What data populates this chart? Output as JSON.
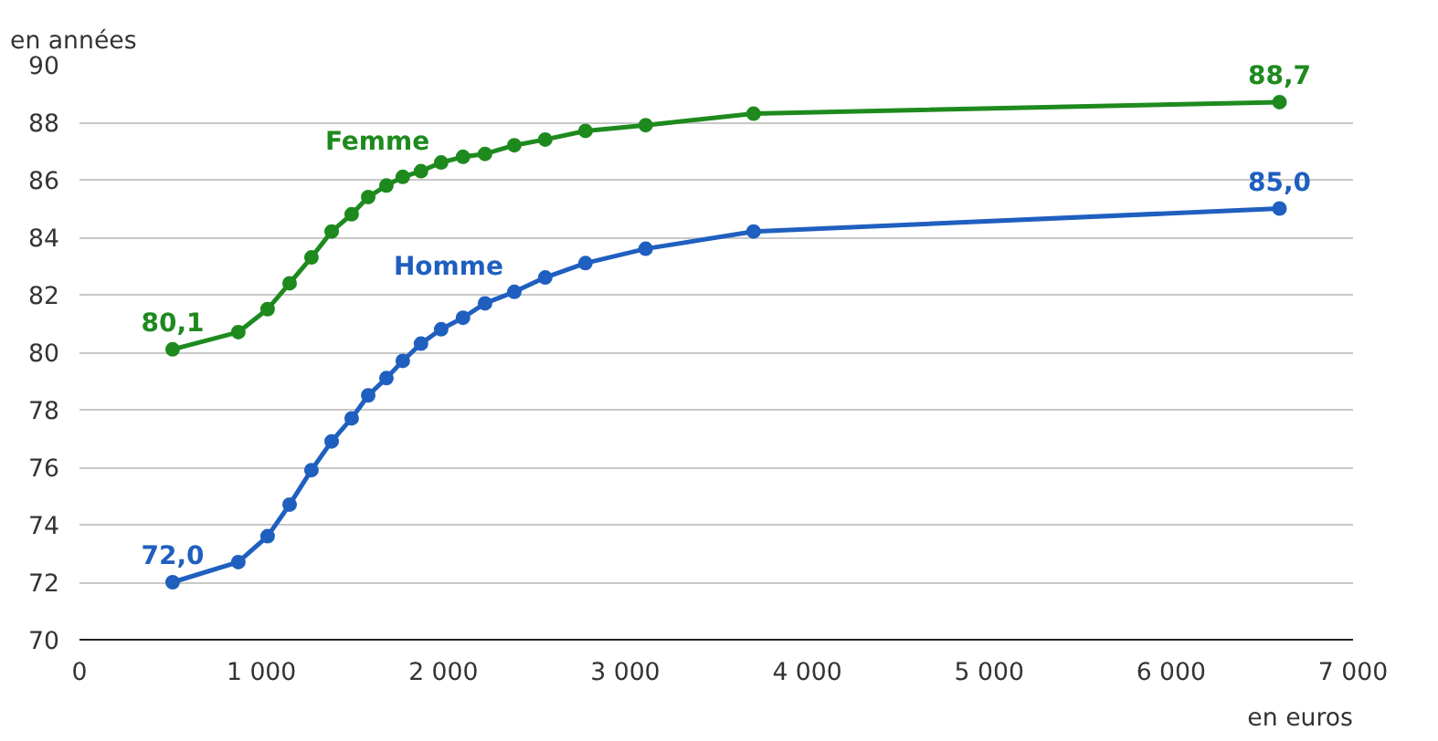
{
  "chart_data": {
    "type": "line",
    "xlabel": "en euros",
    "ylabel": "en années",
    "xlim": [
      0,
      7000
    ],
    "ylim": [
      70,
      90
    ],
    "xticks": [
      0,
      {
        "value": 1000,
        "label": "1 000"
      },
      {
        "value": 2000,
        "label": "2 000"
      },
      {
        "value": 3000,
        "label": "3 000"
      },
      {
        "value": 4000,
        "label": "4 000"
      },
      {
        "value": 5000,
        "label": "5 000"
      },
      {
        "value": 6000,
        "label": "6 000"
      },
      {
        "value": 7000,
        "label": "7 000"
      }
    ],
    "yticks": [
      70,
      72,
      74,
      76,
      78,
      80,
      82,
      84,
      86,
      88,
      90
    ],
    "grid": "y",
    "marker": "circle",
    "line_style": "solid",
    "series": [
      {
        "name": "Femme",
        "color": "#1e8a1e",
        "x": [
          512,
          873,
          1034,
          1155,
          1275,
          1386,
          1496,
          1587,
          1687,
          1777,
          1877,
          1988,
          2108,
          2229,
          2390,
          2560,
          2781,
          3112,
          3705,
          6596
        ],
        "values": [
          80.1,
          80.7,
          81.5,
          82.4,
          83.3,
          84.2,
          84.8,
          85.4,
          85.8,
          86.1,
          86.3,
          86.6,
          86.8,
          86.9,
          87.2,
          87.4,
          87.7,
          87.9,
          88.3,
          88.7
        ],
        "value_labels": [
          "80,1",
          null,
          null,
          null,
          null,
          null,
          null,
          null,
          null,
          null,
          null,
          null,
          null,
          null,
          null,
          null,
          null,
          null,
          null,
          "88,7"
        ]
      },
      {
        "name": "Homme",
        "color": "#1f5fbf",
        "x": [
          512,
          873,
          1034,
          1155,
          1275,
          1386,
          1496,
          1587,
          1687,
          1777,
          1877,
          1988,
          2108,
          2229,
          2390,
          2560,
          2781,
          3112,
          3705,
          6596
        ],
        "values": [
          72.0,
          72.7,
          73.6,
          74.7,
          75.9,
          76.9,
          77.7,
          78.5,
          79.1,
          79.7,
          80.3,
          80.8,
          81.2,
          81.7,
          82.1,
          82.6,
          83.1,
          83.6,
          84.2,
          85.0
        ],
        "value_labels": [
          "72,0",
          null,
          null,
          null,
          null,
          null,
          null,
          null,
          null,
          null,
          null,
          null,
          null,
          null,
          null,
          null,
          null,
          null,
          null,
          "85,0"
        ]
      }
    ]
  }
}
